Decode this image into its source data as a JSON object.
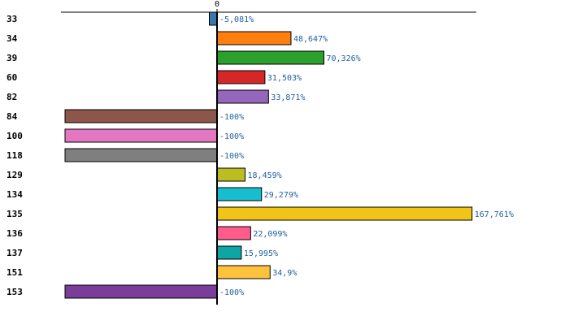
{
  "chart_data": {
    "type": "bar",
    "orientation": "horizontal",
    "title": "",
    "xlabel": "",
    "ylabel": "",
    "axis_tick": "0",
    "xlim": [
      -100,
      170
    ],
    "highlight_color": "#cc0000",
    "bars": [
      {
        "category": "33",
        "value": -5.081,
        "label": "-5,081%",
        "color": "#3a76b0"
      },
      {
        "category": "34",
        "value": 48.647,
        "label": "48,647%",
        "color": "#ff7f0e"
      },
      {
        "category": "39",
        "value": 70.326,
        "label": "70,326%",
        "color": "#2ca02c"
      },
      {
        "category": "60",
        "value": 31.503,
        "label": "31,503%",
        "color": "#d62728"
      },
      {
        "category": "82",
        "value": 33.871,
        "label": "33,871%",
        "color": "#9467bd"
      },
      {
        "category": "84",
        "value": -100,
        "label": "-100%",
        "color": "#8c564b"
      },
      {
        "category": "100",
        "value": -100,
        "label": "-100%",
        "color": "#e377c2"
      },
      {
        "category": "118",
        "value": -100,
        "label": "-100%",
        "color": "#7f7f7f"
      },
      {
        "category": "129",
        "value": 18.459,
        "label": "18,459%",
        "color": "#bcbd22"
      },
      {
        "category": "134",
        "value": 29.279,
        "label": "29,279%",
        "color": "#17becf"
      },
      {
        "category": "135",
        "value": 167.761,
        "label": "167,761%",
        "color": "#f0c419",
        "highlight": true
      },
      {
        "category": "136",
        "value": 22.099,
        "label": "22,099%",
        "color": "#ff5c8d"
      },
      {
        "category": "137",
        "value": 15.995,
        "label": "15,995%",
        "color": "#10a5a5"
      },
      {
        "category": "151",
        "value": 34.9,
        "label": "34,9%",
        "color": "#ffc23d"
      },
      {
        "category": "153",
        "value": -100,
        "label": "-100%",
        "color": "#7a3d99"
      }
    ]
  }
}
